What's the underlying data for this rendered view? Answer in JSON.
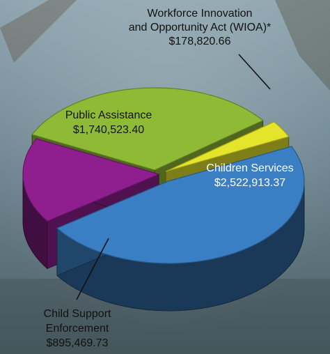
{
  "chart_data": {
    "type": "pie",
    "slices": [
      {
        "label": "Children Services",
        "value": 2522913.37,
        "value_text": "$2,522,913.37",
        "color": "#3a7fc4"
      },
      {
        "label": "Child Support Enforcement",
        "value": 895469.73,
        "value_text": "$895,469.73",
        "color": "#8f1f8f"
      },
      {
        "label": "Public Assistance",
        "value": 1740523.4,
        "value_text": "$1,740,523.40",
        "color": "#8fba36"
      },
      {
        "label": "Workforce Innovation and Opportunity Act (WIOA)*",
        "value": 178820.66,
        "value_text": "$178,820.66",
        "color": "#e4e52a"
      }
    ]
  },
  "labels": {
    "wioa": {
      "line1": "Workforce Innovation",
      "line2": "and Opportunity Act (WIOA)*",
      "value": "$178,820.66"
    },
    "public": {
      "line1": "Public Assistance",
      "value": "$1,740,523.40"
    },
    "children": {
      "line1": "Children Services",
      "value": "$2,522,913.37"
    },
    "support": {
      "line1": "Child Support",
      "line2": "Enforcement",
      "value": "$895,469.73"
    }
  }
}
